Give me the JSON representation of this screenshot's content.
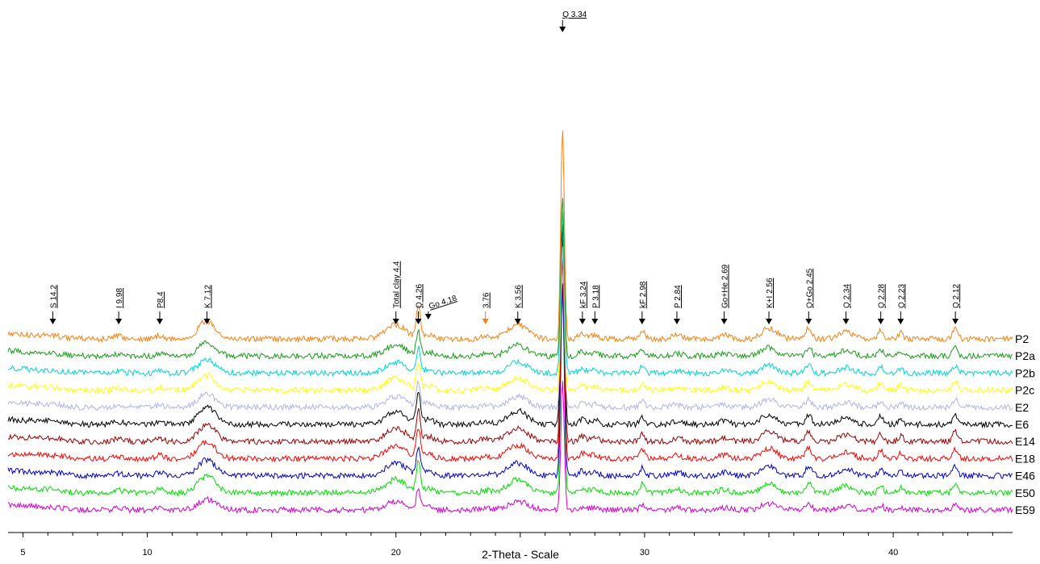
{
  "chart_data": {
    "type": "line",
    "title": "",
    "xlabel": "2-Theta - Scale",
    "ylabel": "",
    "xlim": [
      4.4,
      44.8
    ],
    "x_ticks": [
      5,
      10,
      20,
      30,
      40
    ],
    "grid": false,
    "legend": "right-side labels at the end of each trace",
    "series": [
      {
        "name": "P2",
        "color": "#ff7f0e",
        "intensity_scale": 1.0
      },
      {
        "name": "P2a",
        "color": "#1a9c1a",
        "intensity_scale": 0.75
      },
      {
        "name": "P2b",
        "color": "#00d5d5",
        "intensity_scale": 0.75
      },
      {
        "name": "P2c",
        "color": "#ffff00",
        "intensity_scale": 0.85
      },
      {
        "name": "E2",
        "color": "#b3b3ec",
        "intensity_scale": 0.75
      },
      {
        "name": "E6",
        "color": "#000000",
        "intensity_scale": 0.95
      },
      {
        "name": "E14",
        "color": "#a00000",
        "intensity_scale": 0.95
      },
      {
        "name": "E18",
        "color": "#ff0000",
        "intensity_scale": 0.95
      },
      {
        "name": "E46",
        "color": "#0000cc",
        "intensity_scale": 0.9
      },
      {
        "name": "E50",
        "color": "#00e000",
        "intensity_scale": 0.95
      },
      {
        "name": "E59",
        "color": "#d400d4",
        "intensity_scale": 0.6
      }
    ],
    "peaks": [
      {
        "two_theta": 6.2,
        "height": 0.1,
        "width": 0.5
      },
      {
        "two_theta": 8.85,
        "height": 0.15,
        "width": 0.2
      },
      {
        "two_theta": 10.5,
        "height": 0.2,
        "width": 0.15
      },
      {
        "two_theta": 12.4,
        "height": 1.0,
        "width": 0.35
      },
      {
        "two_theta": 20.0,
        "height": 0.8,
        "width": 0.4
      },
      {
        "two_theta": 20.9,
        "height": 1.8,
        "width": 0.08
      },
      {
        "two_theta": 21.3,
        "height": 0.3,
        "width": 0.2
      },
      {
        "two_theta": 23.6,
        "height": 0.15,
        "width": 0.2
      },
      {
        "two_theta": 24.9,
        "height": 0.8,
        "width": 0.4
      },
      {
        "two_theta": 26.7,
        "height": 12.0,
        "width": 0.07
      },
      {
        "two_theta": 27.5,
        "height": 0.3,
        "width": 0.15
      },
      {
        "two_theta": 28.0,
        "height": 0.25,
        "width": 0.15
      },
      {
        "two_theta": 29.9,
        "height": 0.5,
        "width": 0.1
      },
      {
        "two_theta": 31.3,
        "height": 0.2,
        "width": 0.2
      },
      {
        "two_theta": 33.2,
        "height": 0.2,
        "width": 0.2
      },
      {
        "two_theta": 35.0,
        "height": 0.6,
        "width": 0.3
      },
      {
        "two_theta": 36.6,
        "height": 0.6,
        "width": 0.12
      },
      {
        "two_theta": 38.1,
        "height": 0.4,
        "width": 0.3
      },
      {
        "two_theta": 39.5,
        "height": 0.5,
        "width": 0.1
      },
      {
        "two_theta": 40.3,
        "height": 0.35,
        "width": 0.1
      },
      {
        "two_theta": 42.5,
        "height": 0.6,
        "width": 0.1
      }
    ],
    "annotations": [
      {
        "label": "S 14.2",
        "two_theta": 6.2,
        "rotated": true,
        "color": "#000000"
      },
      {
        "label": "I 9.98",
        "two_theta": 8.85,
        "rotated": true,
        "color": "#000000"
      },
      {
        "label": "P8.4",
        "two_theta": 10.5,
        "rotated": true,
        "color": "#000000"
      },
      {
        "label": "K 7.12",
        "two_theta": 12.4,
        "rotated": true,
        "color": "#000000"
      },
      {
        "label": "Total clay 4.4",
        "two_theta": 20.0,
        "rotated": true,
        "color": "#000000"
      },
      {
        "label": "Q 4.26",
        "two_theta": 20.9,
        "rotated": true,
        "color": "#000000"
      },
      {
        "label": "Go 4.18",
        "two_theta": 21.3,
        "rotated": false,
        "slanted": true,
        "color": "#000000"
      },
      {
        "label": "3.76",
        "two_theta": 23.6,
        "rotated": true,
        "color": "#ff7f0e"
      },
      {
        "label": "K 3.56",
        "two_theta": 24.9,
        "rotated": true,
        "color": "#000000"
      },
      {
        "label": "Q 3.34",
        "two_theta": 26.7,
        "rotated": false,
        "color": "#000000"
      },
      {
        "label": "kF 3.24",
        "two_theta": 27.5,
        "rotated": true,
        "color": "#000000"
      },
      {
        "label": "P 3.18",
        "two_theta": 28.0,
        "rotated": true,
        "color": "#000000"
      },
      {
        "label": "kF 2.98",
        "two_theta": 29.9,
        "rotated": true,
        "color": "#000000"
      },
      {
        "label": "P 2.84",
        "two_theta": 31.3,
        "rotated": true,
        "color": "#000000"
      },
      {
        "label": "Go+He 2.69",
        "two_theta": 33.2,
        "rotated": true,
        "color": "#000000"
      },
      {
        "label": "K+I 2.56",
        "two_theta": 35.0,
        "rotated": true,
        "color": "#000000"
      },
      {
        "label": "Q+Go 2.45",
        "two_theta": 36.6,
        "rotated": true,
        "color": "#000000"
      },
      {
        "label": "Q 2.34",
        "two_theta": 38.1,
        "rotated": true,
        "color": "#000000"
      },
      {
        "label": "Q 2.28",
        "two_theta": 39.5,
        "rotated": true,
        "color": "#000000"
      },
      {
        "label": "Q 2.23",
        "two_theta": 40.3,
        "rotated": true,
        "color": "#000000"
      },
      {
        "label": "Q 2.12",
        "two_theta": 42.5,
        "rotated": true,
        "color": "#000000"
      }
    ]
  }
}
